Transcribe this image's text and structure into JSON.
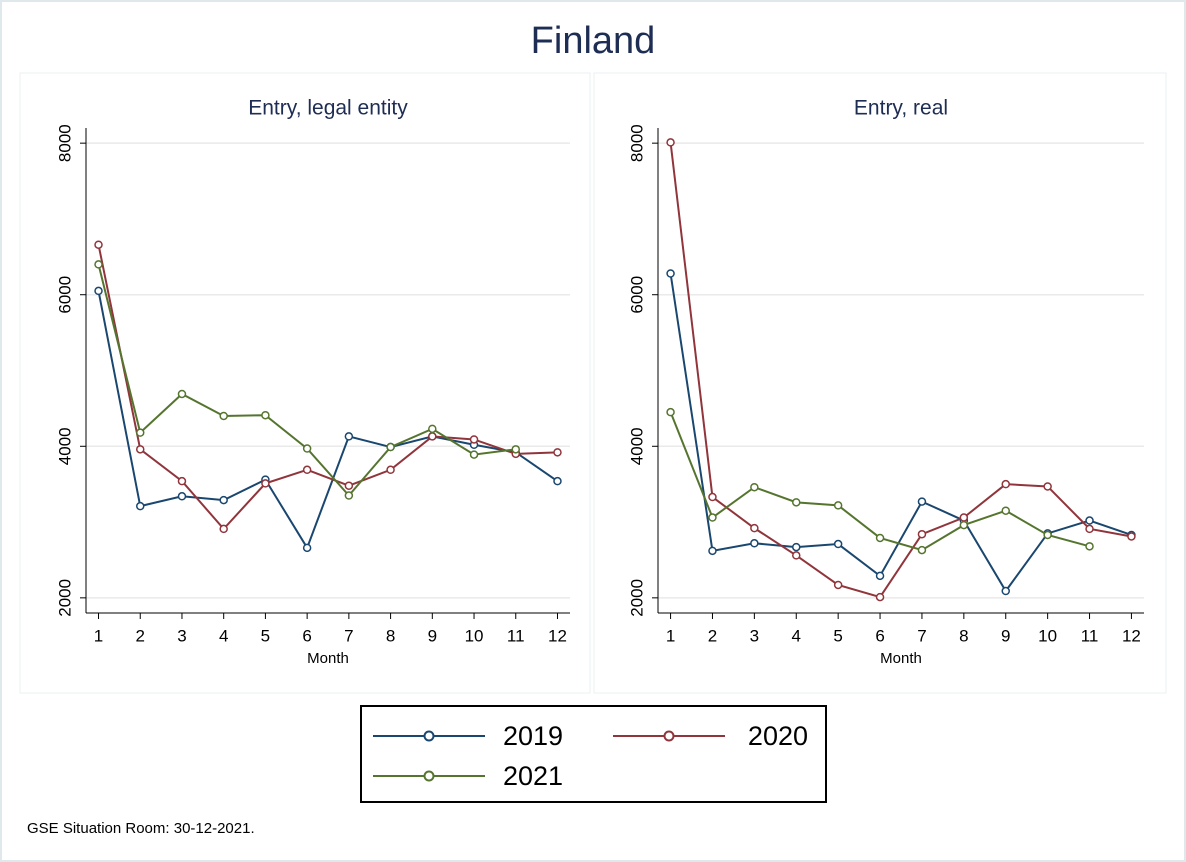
{
  "title": "Finland",
  "note": "GSE Situation Room: 30-12-2021.",
  "chart_data": [
    {
      "type": "line",
      "title": "Entry, legal entity",
      "x_label": "Month",
      "x": [
        1,
        2,
        3,
        4,
        5,
        6,
        7,
        8,
        9,
        10,
        11,
        12
      ],
      "xlim": [
        0.7,
        12.3
      ],
      "xticks": [
        1,
        2,
        3,
        4,
        5,
        6,
        7,
        8,
        9,
        10,
        11,
        12
      ],
      "ylim": [
        1800,
        8200
      ],
      "yticks": [
        2000,
        4000,
        6000,
        8000
      ],
      "grid": true,
      "series": [
        {
          "name": "2019",
          "color": "#1a476f",
          "values": [
            6050,
            3210,
            3340,
            3290,
            3560,
            2660,
            4130,
            3990,
            4130,
            4020,
            3920,
            3540
          ]
        },
        {
          "name": "2020",
          "color": "#90353b",
          "values": [
            6660,
            3960,
            3540,
            2910,
            3510,
            3690,
            3480,
            3690,
            4130,
            4090,
            3900,
            3920
          ]
        },
        {
          "name": "2021",
          "color": "#55752f",
          "values": [
            6400,
            4180,
            4690,
            4400,
            4410,
            3970,
            3350,
            3990,
            4230,
            3890,
            3960,
            null
          ]
        }
      ]
    },
    {
      "type": "line",
      "title": "Entry, real",
      "x_label": "Month",
      "x": [
        1,
        2,
        3,
        4,
        5,
        6,
        7,
        8,
        9,
        10,
        11,
        12
      ],
      "xlim": [
        0.7,
        12.3
      ],
      "xticks": [
        1,
        2,
        3,
        4,
        5,
        6,
        7,
        8,
        9,
        10,
        11,
        12
      ],
      "ylim": [
        1800,
        8200
      ],
      "yticks": [
        2000,
        4000,
        6000,
        8000
      ],
      "grid": true,
      "series": [
        {
          "name": "2019",
          "color": "#1a476f",
          "values": [
            6280,
            2620,
            2720,
            2670,
            2710,
            2290,
            3270,
            3020,
            2090,
            2850,
            3020,
            2830
          ]
        },
        {
          "name": "2020",
          "color": "#90353b",
          "values": [
            8010,
            3330,
            2920,
            2560,
            2170,
            2010,
            2840,
            3060,
            3500,
            3470,
            2910,
            2810
          ]
        },
        {
          "name": "2021",
          "color": "#55752f",
          "values": [
            4450,
            3060,
            3460,
            3260,
            3220,
            2790,
            2630,
            2960,
            3150,
            2830,
            2680,
            null
          ]
        }
      ]
    }
  ]
}
